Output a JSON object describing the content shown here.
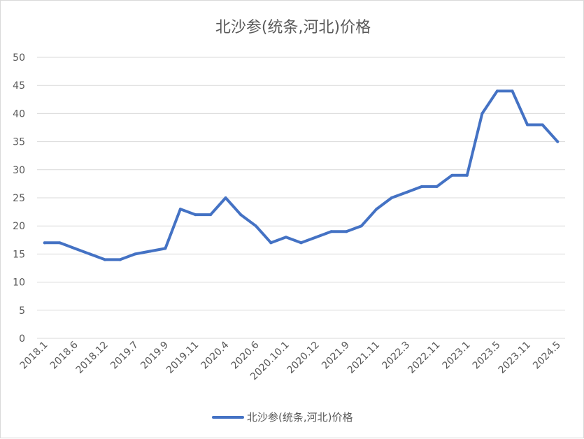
{
  "chart_data": {
    "type": "line",
    "title": "北沙参(统条,河北)价格",
    "xlabel": "",
    "ylabel": "",
    "ylim": [
      0,
      50
    ],
    "yticks": [
      0,
      5,
      10,
      15,
      20,
      25,
      30,
      35,
      40,
      45,
      50
    ],
    "grid": true,
    "legend_position": "bottom",
    "line_color": "#4472C4",
    "x_tick_labels": [
      "2018.1",
      "2018.6",
      "2018.12",
      "2019.7",
      "2019.9",
      "2019.11",
      "2020.4",
      "2020.6",
      "2020.10.1",
      "2020.12",
      "2021.9",
      "2021.11",
      "2022.3",
      "2022.11",
      "2023.1",
      "2023.5",
      "2023.11",
      "2024.5"
    ],
    "series": [
      {
        "name": "北沙参(统条,河北)价格",
        "values": [
          17,
          17,
          16,
          15,
          14,
          14,
          15,
          15.5,
          16,
          23,
          22,
          22,
          25,
          22,
          20,
          17,
          18,
          17,
          18,
          19,
          19,
          20,
          23,
          25,
          26,
          27,
          27,
          29,
          29,
          40,
          44,
          44,
          38,
          38,
          35
        ]
      }
    ]
  }
}
